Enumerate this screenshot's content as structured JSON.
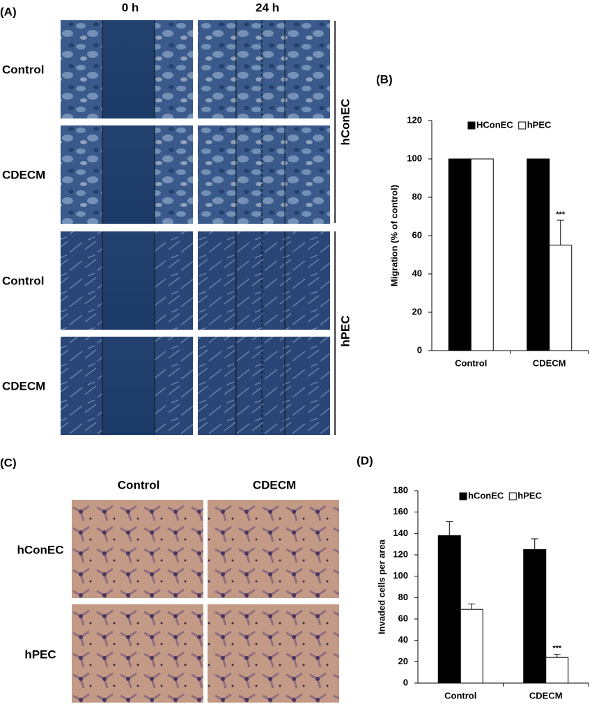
{
  "panel_a": {
    "label": "(A)",
    "columns": [
      "0 h",
      "24 h"
    ],
    "rows": [
      "Control",
      "CDECM",
      "Control",
      "CDECM"
    ],
    "groups": [
      "hConEC",
      "hPEC"
    ]
  },
  "panel_c": {
    "label": "(C)",
    "columns": [
      "Control",
      "CDECM"
    ],
    "rows": [
      "hConEC",
      "hPEC"
    ]
  },
  "chart_data": [
    {
      "type": "bar",
      "label": "(B)",
      "y_label": "Migration (% of control)",
      "categories": [
        "Control",
        "CDECM"
      ],
      "series": [
        {
          "name": "HConEC",
          "color": "#000000",
          "values": [
            100,
            100
          ]
        },
        {
          "name": "hPEC",
          "color": "#ffffff",
          "values": [
            100,
            55
          ],
          "errors": [
            0,
            13
          ]
        }
      ],
      "annotation": "***",
      "ylim": [
        0,
        120
      ],
      "yticks": [
        0,
        20,
        40,
        60,
        80,
        100,
        120
      ],
      "legend": "top"
    },
    {
      "type": "bar",
      "label": "(D)",
      "y_label": "Invaded cells per area",
      "categories": [
        "Control",
        "CDECM"
      ],
      "series": [
        {
          "name": "hConEC",
          "color": "#000000",
          "values": [
            138,
            125
          ],
          "errors": [
            13,
            10
          ]
        },
        {
          "name": "hPEC",
          "color": "#ffffff",
          "values": [
            69,
            24
          ],
          "errors": [
            5,
            3
          ]
        }
      ],
      "annotation": "***",
      "ylim": [
        0,
        180
      ],
      "yticks": [
        0,
        20,
        40,
        60,
        80,
        100,
        120,
        140,
        160,
        180
      ],
      "legend": "top"
    }
  ]
}
